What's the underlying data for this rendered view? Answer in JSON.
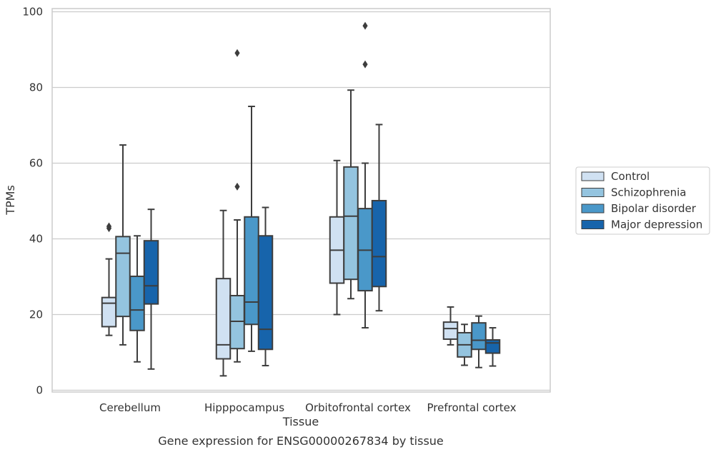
{
  "chart_data": {
    "type": "box",
    "caption": "Gene expression for ENSG00000267834 by tissue",
    "xlabel": "Tissue",
    "ylabel": "TPMs",
    "ylim": [
      0,
      100
    ],
    "yticks": [
      0,
      20,
      40,
      60,
      80,
      100
    ],
    "grid": true,
    "legend_position": "right",
    "categories": [
      "Cerebellum",
      "Hipppocampus",
      "Orbitofrontal cortex",
      "Prefrontal cortex"
    ],
    "series": [
      {
        "name": "Control",
        "color": "#d0e1f2",
        "boxes": [
          {
            "whislo": 14.5,
            "q1": 16.8,
            "med": 23.0,
            "q3": 24.5,
            "whishi": 34.7,
            "fliers": [
              42.8,
              43.3
            ]
          },
          {
            "whislo": 3.8,
            "q1": 8.3,
            "med": 12.0,
            "q3": 29.5,
            "whishi": 47.5,
            "fliers": []
          },
          {
            "whislo": 20.0,
            "q1": 28.3,
            "med": 37.0,
            "q3": 45.8,
            "whishi": 60.7,
            "fliers": []
          },
          {
            "whislo": 12.0,
            "q1": 13.5,
            "med": 16.3,
            "q3": 18.0,
            "whishi": 22.0,
            "fliers": []
          }
        ]
      },
      {
        "name": "Schizophrenia",
        "color": "#94c4df",
        "boxes": [
          {
            "whislo": 12.0,
            "q1": 19.5,
            "med": 36.2,
            "q3": 40.6,
            "whishi": 64.8,
            "fliers": []
          },
          {
            "whislo": 7.5,
            "q1": 11.0,
            "med": 18.2,
            "q3": 25.0,
            "whishi": 45.0,
            "fliers": [
              53.8,
              89.1
            ]
          },
          {
            "whislo": 24.2,
            "q1": 29.3,
            "med": 46.0,
            "q3": 59.0,
            "whishi": 79.3,
            "fliers": []
          },
          {
            "whislo": 6.6,
            "q1": 8.8,
            "med": 12.0,
            "q3": 15.2,
            "whishi": 17.4,
            "fliers": []
          }
        ]
      },
      {
        "name": "Bipolar disorder",
        "color": "#4a98c9",
        "boxes": [
          {
            "whislo": 7.5,
            "q1": 15.8,
            "med": 21.2,
            "q3": 30.1,
            "whishi": 40.8,
            "fliers": []
          },
          {
            "whislo": 10.3,
            "q1": 17.4,
            "med": 23.3,
            "q3": 45.8,
            "whishi": 75.0,
            "fliers": []
          },
          {
            "whislo": 16.5,
            "q1": 26.3,
            "med": 37.0,
            "q3": 48.0,
            "whishi": 60.0,
            "fliers": [
              86.1,
              96.3
            ]
          },
          {
            "whislo": 6.0,
            "q1": 10.8,
            "med": 13.2,
            "q3": 17.8,
            "whishi": 19.6,
            "fliers": []
          }
        ]
      },
      {
        "name": "Major depression",
        "color": "#1764ab",
        "boxes": [
          {
            "whislo": 5.6,
            "q1": 22.8,
            "med": 27.6,
            "q3": 39.5,
            "whishi": 47.8,
            "fliers": []
          },
          {
            "whislo": 6.5,
            "q1": 10.8,
            "med": 16.1,
            "q3": 40.8,
            "whishi": 48.3,
            "fliers": []
          },
          {
            "whislo": 21.0,
            "q1": 27.4,
            "med": 35.3,
            "q3": 50.1,
            "whishi": 70.2,
            "fliers": []
          },
          {
            "whislo": 6.4,
            "q1": 9.8,
            "med": 12.5,
            "q3": 13.3,
            "whishi": 16.5,
            "fliers": []
          }
        ]
      }
    ]
  }
}
